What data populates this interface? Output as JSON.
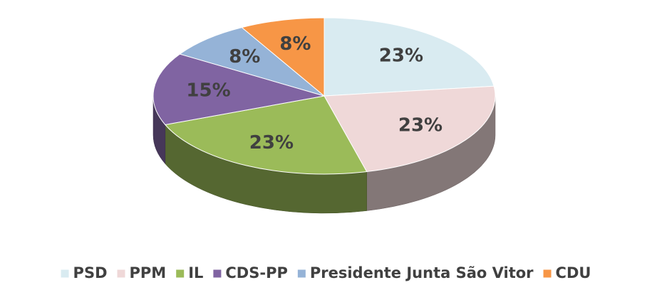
{
  "chart_data": {
    "type": "pie",
    "categories": [
      "PSD",
      "PPM",
      "IL",
      "CDS-PP",
      "Presidente Junta São Vitor",
      "CDU"
    ],
    "values": [
      23,
      23,
      23,
      15,
      8,
      8
    ],
    "value_labels": [
      "23%",
      "23%",
      "23%",
      "15%",
      "8%",
      "8%"
    ],
    "colors": [
      "#d9ebf1",
      "#efd8d8",
      "#9bbb59",
      "#8064a2",
      "#95b3d7",
      "#f79646"
    ],
    "legend": "bottom"
  }
}
